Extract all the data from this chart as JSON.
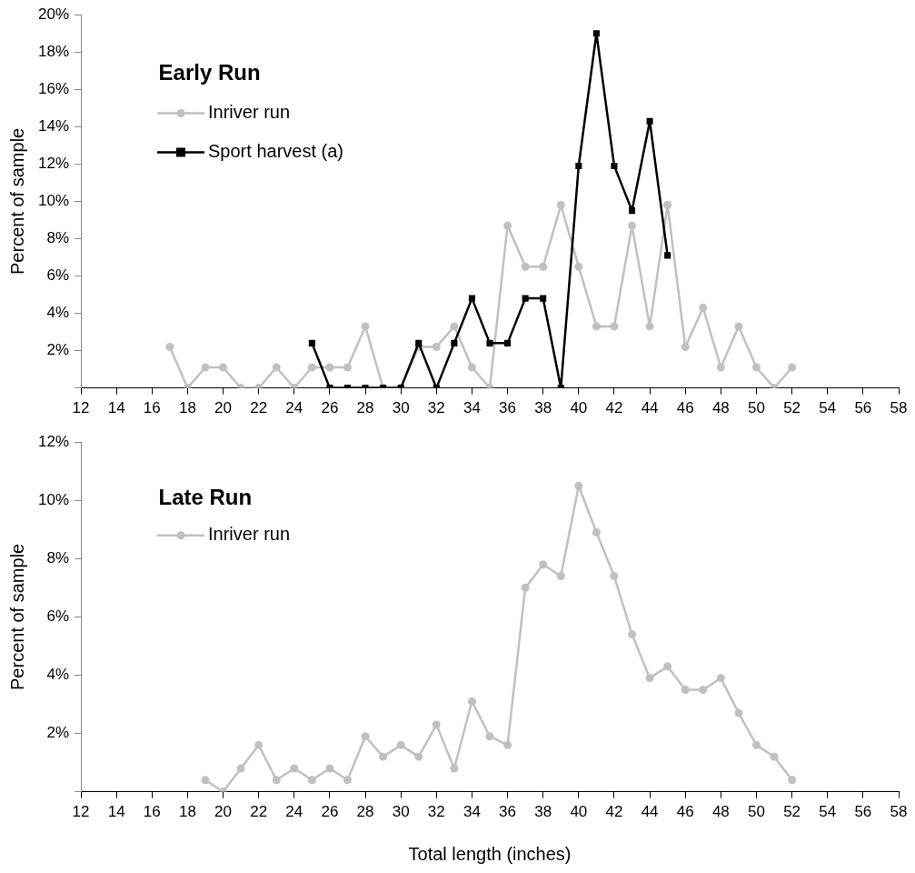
{
  "chart_data": [
    {
      "type": "line",
      "title": "Early Run",
      "ylabel": "Percent of sample",
      "xlim": [
        12,
        58
      ],
      "xticks": [
        12,
        14,
        16,
        18,
        20,
        22,
        24,
        26,
        28,
        30,
        32,
        34,
        36,
        38,
        40,
        42,
        44,
        46,
        48,
        50,
        52,
        54,
        56,
        58
      ],
      "ylim": [
        0,
        20
      ],
      "yticks": [
        {
          "value": 0,
          "label": null
        },
        {
          "value": 2,
          "label": "2%"
        },
        {
          "value": 4,
          "label": "4%"
        },
        {
          "value": 6,
          "label": "6%"
        },
        {
          "value": 8,
          "label": "8%"
        },
        {
          "value": 10,
          "label": "10%"
        },
        {
          "value": 12,
          "label": "12%"
        },
        {
          "value": 14,
          "label": "14%"
        },
        {
          "value": 16,
          "label": "16%"
        },
        {
          "value": 18,
          "label": "18%"
        },
        {
          "value": 20,
          "label": "20%"
        }
      ],
      "grid": false,
      "legend": "top left",
      "series": [
        {
          "name": "Inriver run",
          "color": "#c0c0c0",
          "marker": "circle",
          "x": [
            17,
            18,
            19,
            20,
            21,
            22,
            23,
            24,
            25,
            26,
            27,
            28,
            29,
            30,
            31,
            32,
            33,
            34,
            35,
            36,
            37,
            38,
            39,
            40,
            41,
            42,
            43,
            44,
            45,
            46,
            47,
            48,
            49,
            50,
            51,
            52
          ],
          "values": [
            2.2,
            0,
            1.1,
            1.1,
            0,
            0,
            1.1,
            0,
            1.1,
            1.1,
            1.1,
            3.3,
            0,
            0,
            2.2,
            2.2,
            3.3,
            1.1,
            0,
            8.7,
            6.5,
            6.5,
            9.8,
            6.5,
            3.3,
            3.3,
            8.7,
            3.3,
            9.8,
            2.2,
            4.3,
            1.1,
            3.3,
            1.1,
            0,
            1.1
          ]
        },
        {
          "name": "Sport harvest (a)",
          "color": "#000000",
          "marker": "square",
          "x": [
            25,
            26,
            27,
            28,
            29,
            30,
            31,
            32,
            33,
            34,
            35,
            36,
            37,
            38,
            39,
            40,
            41,
            42,
            43,
            44,
            45
          ],
          "values": [
            2.4,
            0,
            0,
            0,
            0,
            0,
            2.4,
            0,
            2.4,
            4.8,
            2.4,
            2.4,
            4.8,
            4.8,
            0,
            11.9,
            19.0,
            11.9,
            9.5,
            14.3,
            7.1
          ]
        }
      ]
    },
    {
      "type": "line",
      "title": "Late Run",
      "ylabel": "Percent of sample",
      "xlabel": "Total length (inches)",
      "xlim": [
        12,
        58
      ],
      "xticks": [
        12,
        14,
        16,
        18,
        20,
        22,
        24,
        26,
        28,
        30,
        32,
        34,
        36,
        38,
        40,
        42,
        44,
        46,
        48,
        50,
        52,
        54,
        56,
        58
      ],
      "ylim": [
        0,
        12
      ],
      "yticks": [
        {
          "value": 0,
          "label": null
        },
        {
          "value": 2,
          "label": "2%"
        },
        {
          "value": 4,
          "label": "4%"
        },
        {
          "value": 6,
          "label": "6%"
        },
        {
          "value": 8,
          "label": "8%"
        },
        {
          "value": 10,
          "label": "10%"
        },
        {
          "value": 12,
          "label": "12%"
        }
      ],
      "grid": false,
      "legend": "top left",
      "series": [
        {
          "name": "Inriver run",
          "color": "#c0c0c0",
          "marker": "circle",
          "x": [
            19,
            20,
            21,
            22,
            23,
            24,
            25,
            26,
            27,
            28,
            29,
            30,
            31,
            32,
            33,
            34,
            35,
            36,
            37,
            38,
            39,
            40,
            41,
            42,
            43,
            44,
            45,
            46,
            47,
            48,
            49,
            50,
            51,
            52
          ],
          "values": [
            0.4,
            0,
            0.8,
            1.6,
            0.4,
            0.8,
            0.4,
            0.8,
            0.4,
            1.9,
            1.2,
            1.6,
            1.2,
            2.3,
            0.8,
            3.1,
            1.9,
            1.6,
            7.0,
            7.8,
            7.4,
            10.5,
            8.9,
            7.4,
            5.4,
            3.9,
            4.3,
            3.5,
            3.5,
            3.9,
            2.7,
            1.6,
            1.2,
            0.4
          ]
        }
      ]
    }
  ]
}
